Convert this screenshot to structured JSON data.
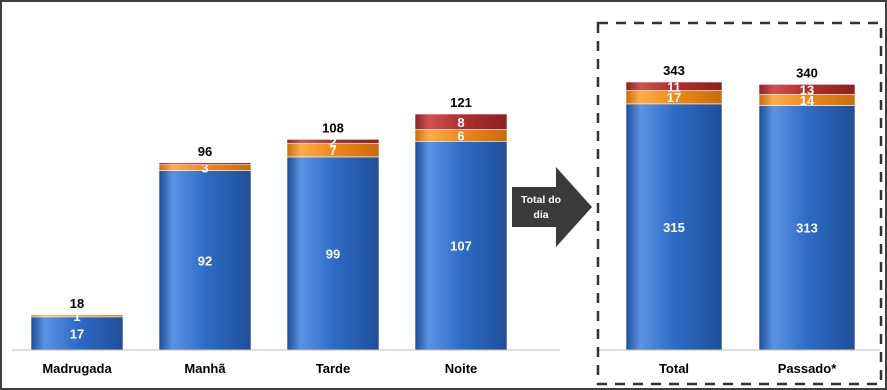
{
  "colors": {
    "series": [
      "#2e6cc6",
      "#ef8a17",
      "#b02f2f"
    ],
    "series_light": [
      "#5b93e2",
      "#ffad4a",
      "#cf5252"
    ],
    "series_dark": [
      "#1f4e98",
      "#c86c08",
      "#8c2121"
    ],
    "arrow": "#3a3a3a",
    "text": "#000000"
  },
  "arrow": {
    "text_line1": "Total do",
    "text_line2": "dia"
  },
  "chart_data": [
    {
      "type": "bar",
      "stacked": true,
      "categories": [
        "Madrugada",
        "Manhã",
        "Tarde",
        "Noite"
      ],
      "series": [
        {
          "values": [
            17,
            92,
            99,
            107
          ]
        },
        {
          "values": [
            1,
            3,
            7,
            6
          ]
        },
        {
          "values": [
            0,
            1,
            2,
            8
          ]
        }
      ],
      "totals": [
        18,
        96,
        108,
        121
      ],
      "segment_labels": [
        [
          "17",
          "1",
          ""
        ],
        [
          "92",
          "3",
          ""
        ],
        [
          "99",
          "7",
          "2"
        ],
        [
          "107",
          "6",
          "8"
        ]
      ],
      "ylim": [
        0,
        130
      ]
    },
    {
      "type": "bar",
      "stacked": true,
      "categories": [
        "Total",
        "Passado*"
      ],
      "series": [
        {
          "values": [
            315,
            313
          ]
        },
        {
          "values": [
            17,
            14
          ]
        },
        {
          "values": [
            11,
            13
          ]
        }
      ],
      "totals": [
        343,
        340
      ],
      "segment_labels": [
        [
          "315",
          "17",
          "11"
        ],
        [
          "313",
          "14",
          "13"
        ]
      ]
    }
  ]
}
